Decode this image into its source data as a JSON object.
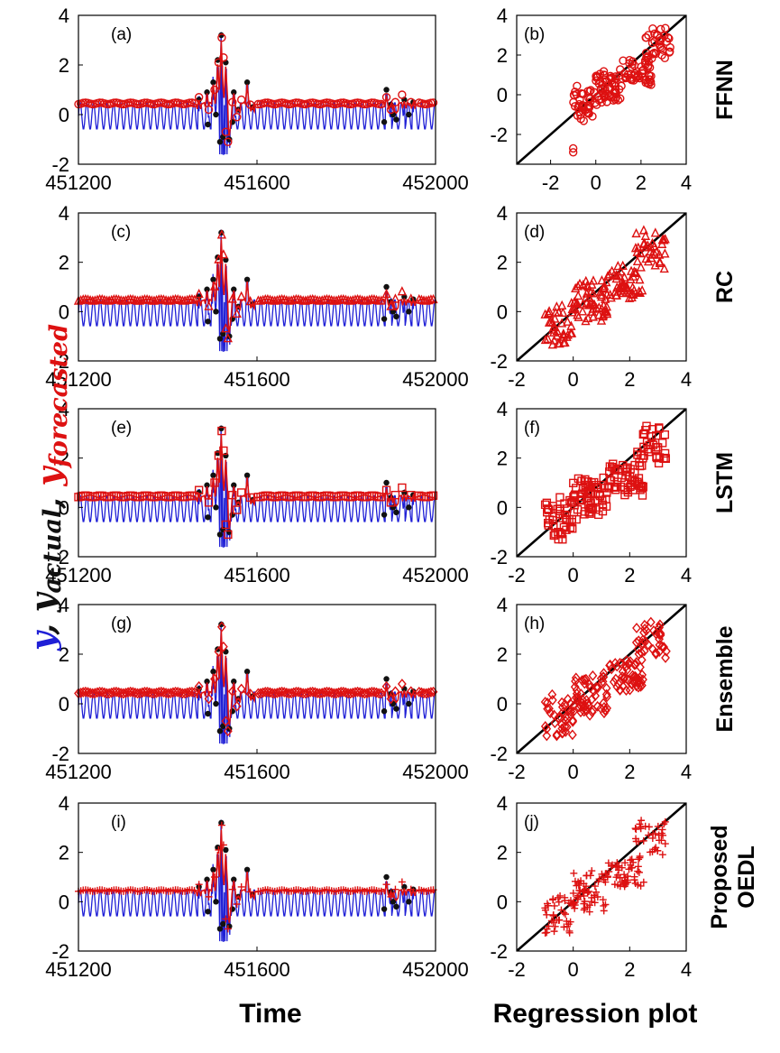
{
  "chart_data": {
    "type": "multi-panel time series + regression scatter",
    "xlabel_left": "Time",
    "xlabel_right": "Regression plot",
    "ylabel_parts": [
      {
        "text": "y",
        "sub": "",
        "color": "#1f1fd6"
      },
      {
        "text": ", ",
        "sub": "",
        "color": "#111111"
      },
      {
        "text": "y",
        "sub": "actual",
        "color": "#111111"
      },
      {
        "text": ", ",
        "sub": "",
        "color": "#111111"
      },
      {
        "text": "y",
        "sub": "forecasted",
        "color": "#dd1111"
      }
    ],
    "time_axis": {
      "xlim": [
        451200,
        452000
      ],
      "xticks": [
        451200,
        451600,
        452000
      ],
      "ylim": [
        -2,
        4
      ],
      "yticks": [
        -2,
        0,
        2,
        4
      ]
    },
    "regression_axis": {
      "xticks": [
        -2,
        0,
        2,
        4
      ],
      "yticks": [
        -2,
        0,
        2,
        4
      ],
      "reference_line": "y = x"
    },
    "colors": {
      "y": "#1f1fd6",
      "actual": "#111111",
      "forecast": "#dd1111",
      "diagonal": "#000000"
    },
    "rows": [
      {
        "model": "FFNN",
        "marker": "circle",
        "ts_label": "(a)",
        "reg_label": "(b)",
        "reg_xlim": [
          -3.5,
          4
        ],
        "reg_ylim": [
          -3.5,
          4
        ],
        "reg_yticks": [
          -2,
          0,
          2,
          4
        ],
        "reg_xticks": [
          -2,
          0,
          2,
          4
        ]
      },
      {
        "model": "RC",
        "marker": "triangle",
        "ts_label": "(c)",
        "reg_label": "(d)",
        "reg_xlim": [
          -2,
          4
        ],
        "reg_ylim": [
          -2,
          4
        ],
        "reg_yticks": [
          -2,
          0,
          2,
          4
        ],
        "reg_xticks": [
          -2,
          0,
          2,
          4
        ]
      },
      {
        "model": "LSTM",
        "marker": "square",
        "ts_label": "(e)",
        "reg_label": "(f)",
        "reg_xlim": [
          -2,
          4
        ],
        "reg_ylim": [
          -2,
          4
        ],
        "reg_yticks": [
          -2,
          0,
          2,
          4
        ],
        "reg_xticks": [
          -2,
          0,
          2,
          4
        ]
      },
      {
        "model": "Ensemble",
        "marker": "diamond",
        "ts_label": "(g)",
        "reg_label": "(h)",
        "reg_xlim": [
          -2,
          4
        ],
        "reg_ylim": [
          -2,
          4
        ],
        "reg_yticks": [
          -2,
          0,
          2,
          4
        ],
        "reg_xticks": [
          -2,
          0,
          2,
          4
        ]
      },
      {
        "model": "Proposed\nOEDL",
        "marker": "plus",
        "ts_label": "(i)",
        "reg_label": "(j)",
        "reg_xlim": [
          -2,
          4
        ],
        "reg_ylim": [
          -2,
          4
        ],
        "reg_yticks": [
          -2,
          0,
          2,
          4
        ],
        "reg_xticks": [
          -2,
          0,
          2,
          4
        ]
      }
    ],
    "baseline": {
      "y_mean": -0.05,
      "y_amplitude": 0.55,
      "cycle_period": 15,
      "forecast_level": 0.45
    },
    "burst_1": {
      "center": 451525,
      "actual_peaks": [
        {
          "t": 451470,
          "v": 0.6
        },
        {
          "t": 451488,
          "v": 0.9
        },
        {
          "t": 451502,
          "v": 1.3
        },
        {
          "t": 451512,
          "v": 2.2
        },
        {
          "t": 451520,
          "v": 3.2
        },
        {
          "t": 451524,
          "v": -0.9
        },
        {
          "t": 451530,
          "v": 2.1
        },
        {
          "t": 451538,
          "v": -1.0
        },
        {
          "t": 451548,
          "v": 0.9
        },
        {
          "t": 451558,
          "v": 0.2
        },
        {
          "t": 451578,
          "v": 1.3
        },
        {
          "t": 451590,
          "v": 0.3
        }
      ]
    },
    "burst_2": {
      "center": 451900,
      "actual_peaks": [
        {
          "t": 451890,
          "v": 1.0
        },
        {
          "t": 451900,
          "v": 0.4
        },
        {
          "t": 451912,
          "v": -0.2
        },
        {
          "t": 451930,
          "v": 0.6
        },
        {
          "t": 451950,
          "v": 0.5
        }
      ]
    },
    "scatter_clusters": [
      {
        "x": [
          -1,
          0
        ],
        "y": [
          -1.3,
          0.3
        ],
        "n": 40
      },
      {
        "x": [
          0,
          1.2
        ],
        "y": [
          -0.4,
          1.2
        ],
        "n": 60
      },
      {
        "x": [
          1.2,
          2.4
        ],
        "y": [
          0.6,
          1.8
        ],
        "n": 35
      },
      {
        "x": [
          2.2,
          3.3
        ],
        "y": [
          1.8,
          3.2
        ],
        "n": 35
      },
      {
        "x": [
          1.5,
          2.5
        ],
        "y": [
          0.6,
          1.1
        ],
        "n": 15
      }
    ]
  }
}
